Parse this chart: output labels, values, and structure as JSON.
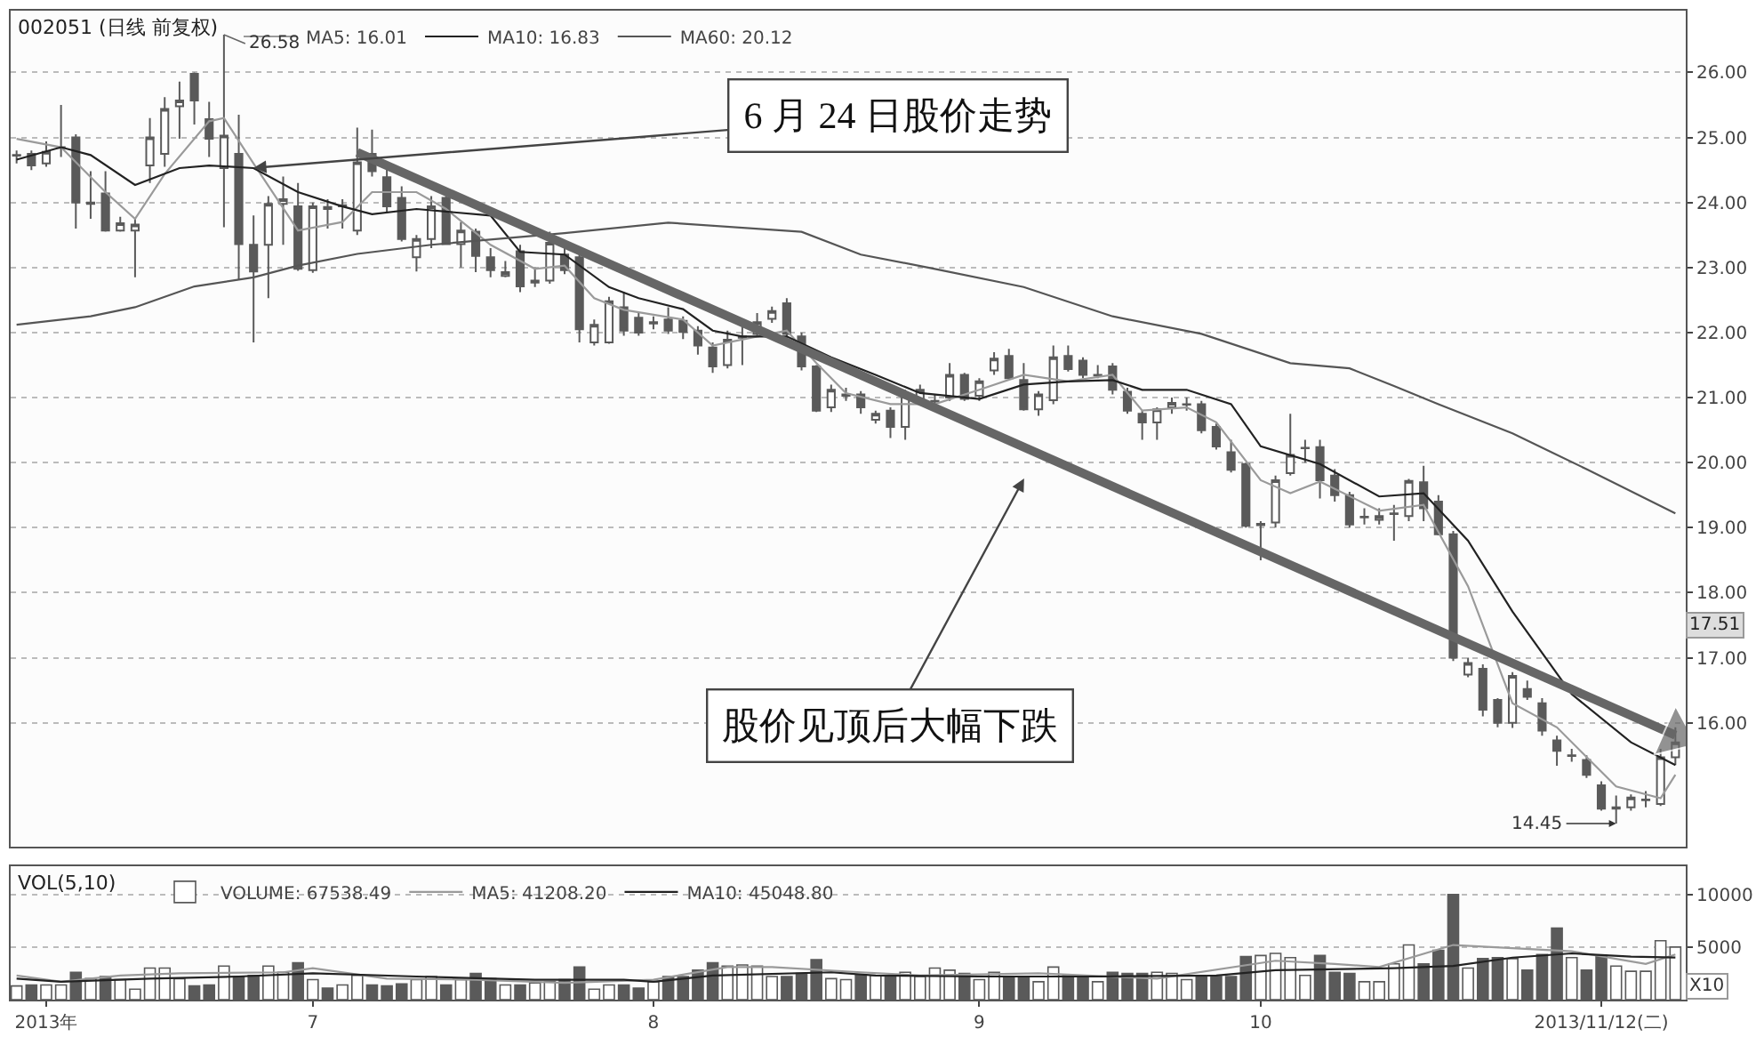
{
  "chart_data": [
    {
      "type": "candlestick",
      "title": "002051 (日线 前复权)",
      "legend": "top left",
      "grid": "y",
      "tick_labels": "y",
      "ylim": [
        14.1,
        26.95
      ],
      "yticks": [
        {
          "value": 16,
          "label": "16.00"
        },
        {
          "value": 17,
          "label": "17.00"
        },
        {
          "value": 18,
          "label": "18.00"
        },
        {
          "value": 19,
          "label": "19.00"
        },
        {
          "value": 20,
          "label": "20.00"
        },
        {
          "value": 21,
          "label": "21.00"
        },
        {
          "value": 22,
          "label": "22.00"
        },
        {
          "value": 23,
          "label": "23.00"
        },
        {
          "value": 24,
          "label": "24.00"
        },
        {
          "value": 25,
          "label": "25.00"
        },
        {
          "value": 26,
          "label": "26.00"
        }
      ],
      "categories": [
        null,
        null,
        null,
        null,
        null,
        null,
        null,
        null,
        null,
        null,
        null,
        null,
        null,
        null,
        null,
        null,
        null,
        null,
        null,
        null,
        null,
        null,
        null,
        null,
        null,
        null,
        null,
        null,
        null,
        null,
        null,
        null,
        null,
        null,
        null,
        null,
        null,
        null,
        null,
        null,
        null,
        null,
        null,
        null,
        null,
        null,
        null,
        null,
        null,
        null,
        null,
        null,
        null,
        null,
        null,
        null,
        null,
        null,
        null,
        null,
        null,
        null,
        null,
        null,
        null,
        null,
        null,
        null,
        null,
        null,
        null,
        null,
        null,
        null,
        null,
        null,
        null,
        null,
        null,
        null,
        null,
        null,
        null,
        null,
        null,
        null,
        null,
        null,
        null,
        null,
        null,
        null,
        null,
        null,
        null,
        null,
        null,
        null,
        null,
        null,
        null,
        null,
        null,
        null,
        null,
        null,
        null,
        null,
        null,
        null,
        null,
        null,
        null
      ],
      "series": [
        {
          "type": "line",
          "name": "MA5: 16.01",
          "color": "#9a9a9a",
          "values": [
            24.98,
            null,
            null,
            24.85,
            null,
            null,
            24.16,
            null,
            23.75,
            null,
            24.44,
            null,
            null,
            25.25,
            25.3,
            null,
            24.6,
            null,
            null,
            23.57,
            null,
            null,
            23.7,
            null,
            24.16,
            null,
            null,
            24.16,
            null,
            23.9,
            null,
            null,
            23.35,
            null,
            null,
            22.98,
            null,
            23.03,
            null,
            22.53,
            null,
            22.35,
            null,
            null,
            null,
            22.2,
            null,
            21.8,
            null,
            null,
            21.94,
            null,
            22.03,
            null,
            21.53,
            null,
            21.07,
            null,
            null,
            20.9,
            null,
            null,
            20.9,
            null,
            null,
            21.12,
            null,
            null,
            21.35,
            null,
            null,
            21.25,
            null,
            null,
            21.35,
            null,
            20.8,
            null,
            null,
            20.85,
            null,
            20.62,
            null,
            null,
            19.73,
            null,
            19.53,
            null,
            19.71,
            null,
            null,
            null,
            19.26,
            null,
            null,
            19.35,
            null,
            null,
            18.1,
            null,
            null,
            16.3,
            null,
            null,
            15.93,
            null,
            null,
            null,
            15.02,
            null,
            null,
            14.84,
            15.2
          ]
        },
        {
          "type": "line",
          "name": "MA10: 16.83",
          "color": "#222222",
          "values": [
            24.66,
            null,
            null,
            24.85,
            null,
            24.73,
            null,
            null,
            24.27,
            null,
            null,
            24.53,
            null,
            24.57,
            null,
            null,
            24.53,
            null,
            null,
            24.16,
            null,
            null,
            23.94,
            null,
            23.82,
            null,
            null,
            23.9,
            null,
            null,
            null,
            null,
            23.8,
            null,
            23.24,
            null,
            null,
            23.2,
            null,
            null,
            22.7,
            null,
            22.53,
            null,
            null,
            22.36,
            null,
            22.03,
            null,
            21.94,
            null,
            null,
            21.94,
            null,
            null,
            21.62,
            null,
            null,
            21.35,
            null,
            null,
            21.07,
            null,
            null,
            null,
            20.98,
            null,
            null,
            21.2,
            null,
            null,
            21.25,
            null,
            null,
            21.27,
            null,
            21.12,
            null,
            null,
            21.12,
            null,
            null,
            20.9,
            null,
            20.25,
            null,
            null,
            null,
            19.98,
            null,
            null,
            null,
            19.48,
            null,
            null,
            19.53,
            null,
            null,
            18.8,
            null,
            null,
            17.71,
            null,
            null,
            null,
            16.44,
            null,
            null,
            null,
            15.7,
            null,
            null,
            15.35
          ]
        },
        {
          "type": "line",
          "name": "MA60: 20.12",
          "color": "#555555",
          "values": [
            22.12,
            null,
            null,
            null,
            null,
            22.25,
            null,
            null,
            22.39,
            null,
            null,
            null,
            22.71,
            null,
            null,
            null,
            22.85,
            null,
            null,
            23.03,
            null,
            null,
            null,
            23.21,
            null,
            null,
            null,
            null,
            23.35,
            null,
            null,
            null,
            null,
            null,
            null,
            null,
            null,
            23.53,
            null,
            null,
            null,
            null,
            null,
            null,
            23.69,
            null,
            null,
            null,
            null,
            null,
            null,
            null,
            null,
            23.55,
            null,
            null,
            null,
            23.2,
            null,
            null,
            null,
            null,
            22.98,
            null,
            null,
            null,
            null,
            null,
            22.7,
            null,
            null,
            null,
            null,
            null,
            22.25,
            null,
            null,
            null,
            null,
            null,
            21.98,
            null,
            null,
            null,
            null,
            null,
            21.53,
            null,
            null,
            null,
            21.45,
            null,
            null,
            21.18,
            null,
            null,
            20.9,
            null,
            null,
            null,
            null,
            20.45,
            null,
            null,
            null,
            null,
            19.9,
            null,
            null,
            null,
            null,
            null,
            19.22
          ]
        },
        {
          "type": "line",
          "color": "#666666",
          "marker": "triangle",
          "values": [
            null,
            null,
            null,
            null,
            null,
            null,
            null,
            null,
            null,
            null,
            null,
            null,
            null,
            null,
            null,
            null,
            null,
            null,
            null,
            null,
            null,
            null,
            null,
            24.77,
            null,
            null,
            null,
            null,
            null,
            null,
            null,
            null,
            null,
            null,
            null,
            null,
            null,
            null,
            null,
            null,
            null,
            null,
            null,
            null,
            null,
            null,
            null,
            null,
            null,
            null,
            null,
            null,
            null,
            null,
            null,
            null,
            null,
            null,
            null,
            null,
            null,
            null,
            null,
            null,
            null,
            null,
            null,
            null,
            null,
            null,
            null,
            null,
            null,
            null,
            null,
            null,
            null,
            null,
            null,
            null,
            null,
            null,
            null,
            null,
            null,
            null,
            null,
            null,
            null,
            null,
            null,
            null,
            null,
            null,
            null,
            null,
            null,
            null,
            null,
            null,
            null,
            null,
            null,
            null,
            null,
            null,
            null,
            null,
            null,
            null,
            null,
            null,
            15.81
          ]
        },
        {
          "color": "#5a5a5a",
          "ohlc": [
            [
              24.72,
              24.8,
              24.6,
              24.73
            ],
            [
              24.75,
              24.8,
              24.5,
              24.57
            ],
            [
              24.6,
              24.94,
              24.55,
              24.78
            ],
            [
              24.84,
              25.5,
              24.7,
              24.85
            ],
            [
              25.0,
              25.05,
              23.6,
              24.0
            ],
            [
              23.98,
              24.48,
              23.75,
              24.0
            ],
            [
              24.14,
              24.48,
              23.55,
              23.57
            ],
            [
              23.57,
              23.78,
              23.55,
              23.68
            ],
            [
              23.57,
              23.75,
              22.85,
              23.66
            ],
            [
              24.57,
              25.3,
              24.3,
              25.0
            ],
            [
              24.75,
              25.62,
              24.55,
              25.44
            ],
            [
              25.48,
              25.86,
              24.98,
              25.57
            ],
            [
              25.98,
              26.0,
              25.2,
              25.57
            ],
            [
              25.28,
              25.55,
              24.7,
              24.98
            ],
            [
              24.53,
              26.58,
              23.62,
              25.03
            ],
            [
              24.75,
              25.35,
              22.82,
              23.36
            ],
            [
              23.35,
              23.8,
              21.85,
              22.94
            ],
            [
              23.35,
              24.1,
              22.53,
              23.98
            ],
            [
              23.98,
              24.4,
              23.35,
              24.05
            ],
            [
              23.94,
              24.3,
              22.95,
              22.98
            ],
            [
              22.96,
              24.0,
              22.92,
              23.94
            ],
            [
              23.93,
              24.05,
              23.6,
              23.9
            ],
            [
              23.94,
              24.05,
              23.6,
              23.96
            ],
            [
              23.57,
              25.15,
              23.5,
              24.62
            ],
            [
              24.75,
              25.12,
              24.4,
              24.48
            ],
            [
              24.39,
              24.53,
              23.85,
              23.94
            ],
            [
              24.07,
              24.25,
              23.4,
              23.44
            ],
            [
              23.16,
              23.5,
              22.94,
              23.44
            ],
            [
              23.44,
              24.1,
              23.3,
              23.94
            ],
            [
              24.07,
              24.1,
              23.35,
              23.36
            ],
            [
              23.36,
              23.7,
              23.0,
              23.57
            ],
            [
              23.55,
              23.6,
              22.93,
              23.18
            ],
            [
              23.16,
              23.3,
              22.85,
              22.96
            ],
            [
              22.87,
              23.1,
              22.85,
              22.93
            ],
            [
              23.25,
              23.35,
              22.62,
              22.71
            ],
            [
              22.77,
              23.0,
              22.7,
              22.8
            ],
            [
              22.8,
              23.55,
              22.75,
              23.38
            ],
            [
              23.2,
              23.35,
              22.9,
              22.96
            ],
            [
              23.16,
              23.2,
              21.85,
              22.05
            ],
            [
              21.85,
              22.2,
              21.8,
              22.12
            ],
            [
              21.85,
              22.55,
              21.83,
              22.48
            ],
            [
              22.39,
              22.62,
              21.95,
              22.03
            ],
            [
              22.23,
              22.3,
              21.95,
              22.0
            ],
            [
              22.14,
              22.25,
              22.05,
              22.16
            ],
            [
              22.2,
              22.39,
              21.98,
              22.03
            ],
            [
              22.18,
              22.25,
              21.9,
              22.01
            ],
            [
              22.03,
              22.1,
              21.66,
              21.8
            ],
            [
              21.77,
              21.85,
              21.38,
              21.48
            ],
            [
              21.5,
              22.03,
              21.45,
              21.89
            ],
            [
              21.92,
              22.2,
              21.5,
              21.94
            ],
            [
              21.98,
              22.3,
              21.95,
              22.16
            ],
            [
              22.21,
              22.4,
              22.15,
              22.33
            ],
            [
              22.45,
              22.53,
              21.9,
              21.98
            ],
            [
              21.94,
              22.0,
              21.42,
              21.48
            ],
            [
              21.48,
              21.5,
              20.78,
              20.8
            ],
            [
              20.85,
              21.2,
              20.78,
              21.12
            ],
            [
              21.03,
              21.15,
              20.95,
              21.05
            ],
            [
              21.05,
              21.1,
              20.75,
              20.85
            ],
            [
              20.66,
              20.8,
              20.6,
              20.75
            ],
            [
              20.8,
              20.85,
              20.38,
              20.55
            ],
            [
              20.55,
              21.12,
              20.35,
              21.07
            ],
            [
              20.98,
              21.2,
              20.95,
              21.12
            ],
            [
              20.94,
              21.05,
              20.85,
              20.95
            ],
            [
              21.0,
              21.53,
              20.95,
              21.35
            ],
            [
              21.35,
              21.38,
              20.95,
              20.98
            ],
            [
              21.03,
              21.3,
              20.95,
              21.25
            ],
            [
              21.42,
              21.7,
              21.35,
              21.6
            ],
            [
              21.64,
              21.75,
              21.28,
              21.3
            ],
            [
              21.27,
              21.53,
              20.8,
              20.82
            ],
            [
              20.82,
              21.1,
              20.72,
              21.05
            ],
            [
              20.96,
              21.8,
              20.9,
              21.62
            ],
            [
              21.64,
              21.8,
              21.4,
              21.44
            ],
            [
              21.57,
              21.62,
              21.3,
              21.35
            ],
            [
              21.34,
              21.5,
              21.3,
              21.35
            ],
            [
              21.48,
              21.53,
              21.05,
              21.12
            ],
            [
              21.09,
              21.15,
              20.75,
              20.8
            ],
            [
              20.75,
              20.8,
              20.35,
              20.62
            ],
            [
              20.62,
              20.85,
              20.35,
              20.82
            ],
            [
              20.85,
              21.0,
              20.75,
              20.92
            ],
            [
              20.89,
              21.0,
              20.8,
              20.9
            ],
            [
              20.9,
              20.95,
              20.45,
              20.5
            ],
            [
              20.55,
              20.6,
              20.2,
              20.25
            ],
            [
              20.16,
              20.35,
              19.85,
              19.89
            ],
            [
              19.98,
              20.0,
              19.0,
              19.03
            ],
            [
              19.04,
              19.1,
              18.5,
              19.06
            ],
            [
              19.08,
              19.8,
              19.0,
              19.73
            ],
            [
              19.84,
              20.75,
              19.8,
              20.12
            ],
            [
              20.22,
              20.35,
              20.0,
              20.23
            ],
            [
              20.24,
              20.35,
              19.45,
              19.73
            ],
            [
              19.8,
              19.9,
              19.4,
              19.5
            ],
            [
              19.5,
              19.55,
              19.0,
              19.05
            ],
            [
              19.16,
              19.3,
              19.05,
              19.17
            ],
            [
              19.12,
              19.3,
              19.05,
              19.18
            ],
            [
              19.21,
              19.35,
              18.8,
              19.22
            ],
            [
              19.18,
              19.75,
              19.1,
              19.72
            ],
            [
              19.7,
              19.95,
              19.1,
              19.3
            ],
            [
              19.4,
              19.5,
              18.88,
              18.9
            ],
            [
              18.9,
              18.95,
              16.95,
              17.0
            ],
            [
              16.74,
              17.0,
              16.7,
              16.92
            ],
            [
              16.83,
              16.9,
              16.1,
              16.2
            ],
            [
              16.35,
              16.38,
              15.93,
              16.0
            ],
            [
              16.0,
              16.78,
              15.92,
              16.72
            ],
            [
              16.52,
              16.65,
              16.35,
              16.4
            ],
            [
              16.3,
              16.38,
              15.8,
              15.88
            ],
            [
              15.73,
              15.8,
              15.34,
              15.57
            ],
            [
              15.49,
              15.6,
              15.4,
              15.5
            ],
            [
              15.43,
              15.5,
              15.15,
              15.2
            ],
            [
              15.04,
              15.1,
              14.65,
              14.68
            ],
            [
              14.68,
              14.88,
              14.45,
              14.7
            ],
            [
              14.7,
              14.9,
              14.65,
              14.85
            ],
            [
              14.81,
              14.95,
              14.7,
              14.82
            ],
            [
              14.75,
              15.6,
              14.72,
              15.47
            ],
            [
              15.47,
              15.93,
              15.35,
              15.7
            ]
          ]
        }
      ],
      "annotations": [
        "6 月 24 日股价走势",
        "股价见顶后大幅下跌",
        "26.58",
        "14.45",
        "17.51"
      ]
    },
    {
      "type": "bar",
      "title": "VOL(5,10)",
      "legend": "top left",
      "grid": "y",
      "ylim": [
        0,
        12700
      ],
      "yticks": [
        5000,
        10000
      ],
      "categories": [
        null,
        null,
        "2013年",
        null,
        null,
        null,
        null,
        null,
        null,
        null,
        null,
        null,
        null,
        null,
        null,
        null,
        null,
        null,
        null,
        null,
        "7",
        null,
        null,
        null,
        null,
        null,
        null,
        null,
        null,
        null,
        null,
        null,
        null,
        null,
        null,
        null,
        null,
        null,
        null,
        null,
        null,
        null,
        null,
        "8",
        null,
        null,
        null,
        null,
        null,
        null,
        null,
        null,
        null,
        null,
        null,
        null,
        null,
        null,
        null,
        null,
        null,
        null,
        null,
        null,
        null,
        "9",
        null,
        null,
        null,
        null,
        null,
        null,
        null,
        null,
        null,
        null,
        null,
        null,
        null,
        null,
        null,
        null,
        null,
        null,
        "10",
        null,
        null,
        null,
        null,
        null,
        null,
        null,
        null,
        null,
        null,
        null,
        null,
        null,
        null,
        null,
        null,
        null,
        null,
        null,
        null,
        null,
        null,
        "2013/11/12(二)",
        null,
        null,
        null,
        null,
        null
      ],
      "series": [
        {
          "name": "VOLUME: 67538.49",
          "color": "#5a5a5a",
          "colors": [
            "#ffffff",
            "#5a5a5a",
            "#ffffff",
            "#ffffff",
            "#5a5a5a",
            "#ffffff",
            "#5a5a5a",
            "#ffffff",
            "#ffffff",
            "#ffffff",
            "#ffffff",
            "#ffffff",
            "#5a5a5a",
            "#5a5a5a",
            "#ffffff",
            "#5a5a5a",
            "#5a5a5a",
            "#ffffff",
            "#ffffff",
            "#5a5a5a",
            "#ffffff",
            "#5a5a5a",
            "#ffffff",
            "#ffffff",
            "#5a5a5a",
            "#5a5a5a",
            "#5a5a5a",
            "#ffffff",
            "#ffffff",
            "#5a5a5a",
            "#ffffff",
            "#5a5a5a",
            "#5a5a5a",
            "#ffffff",
            "#5a5a5a",
            "#ffffff",
            "#ffffff",
            "#5a5a5a",
            "#5a5a5a",
            "#ffffff",
            "#ffffff",
            "#5a5a5a",
            "#5a5a5a",
            "#ffffff",
            "#5a5a5a",
            "#5a5a5a",
            "#5a5a5a",
            "#5a5a5a",
            "#ffffff",
            "#ffffff",
            "#ffffff",
            "#ffffff",
            "#5a5a5a",
            "#5a5a5a",
            "#5a5a5a",
            "#ffffff",
            "#ffffff",
            "#5a5a5a",
            "#ffffff",
            "#5a5a5a",
            "#ffffff",
            "#ffffff",
            "#ffffff",
            "#ffffff",
            "#5a5a5a",
            "#ffffff",
            "#ffffff",
            "#5a5a5a",
            "#5a5a5a",
            "#ffffff",
            "#ffffff",
            "#5a5a5a",
            "#5a5a5a",
            "#ffffff",
            "#5a5a5a",
            "#5a5a5a",
            "#5a5a5a",
            "#ffffff",
            "#ffffff",
            "#ffffff",
            "#5a5a5a",
            "#5a5a5a",
            "#5a5a5a",
            "#5a5a5a",
            "#ffffff",
            "#ffffff",
            "#ffffff",
            "#ffffff",
            "#5a5a5a",
            "#5a5a5a",
            "#5a5a5a",
            "#ffffff",
            "#ffffff",
            "#ffffff",
            "#ffffff",
            "#5a5a5a",
            "#5a5a5a",
            "#5a5a5a",
            "#ffffff",
            "#5a5a5a",
            "#5a5a5a",
            "#ffffff",
            "#5a5a5a",
            "#5a5a5a",
            "#5a5a5a",
            "#ffffff",
            "#5a5a5a",
            "#5a5a5a",
            "#ffffff",
            "#ffffff",
            "#ffffff",
            "#ffffff",
            "#ffffff"
          ],
          "values": [
            1300,
            1400,
            1400,
            1400,
            2600,
            2000,
            2200,
            1900,
            1000,
            3000,
            3000,
            2000,
            1300,
            1400,
            3200,
            2200,
            2300,
            3200,
            2600,
            3500,
            1900,
            1100,
            1400,
            2300,
            1400,
            1300,
            1500,
            1900,
            2200,
            1400,
            1900,
            2500,
            2000,
            1400,
            1400,
            1600,
            1700,
            1900,
            3100,
            1000,
            1400,
            1400,
            1100,
            1700,
            2200,
            2200,
            2800,
            3500,
            3200,
            3300,
            3200,
            2200,
            2200,
            2500,
            3800,
            2000,
            1900,
            2300,
            2300,
            2200,
            2600,
            2200,
            3000,
            2800,
            2500,
            1900,
            2600,
            2200,
            2200,
            1700,
            3100,
            2300,
            2200,
            1700,
            2600,
            2500,
            2500,
            2600,
            2500,
            1900,
            2200,
            2200,
            2200,
            4100,
            4200,
            4400,
            4000,
            2300,
            4200,
            2600,
            2500,
            1700,
            1700,
            3400,
            5200,
            3400,
            4700,
            10000,
            3000,
            3900,
            4000,
            3900,
            2800,
            4300,
            6800,
            4000,
            2800,
            4200,
            3200,
            2700,
            2700,
            5600,
            5000
          ]
        },
        {
          "type": "line",
          "name": "MA5: 41208.20",
          "color": "#9a9a9a",
          "values": [
            2300,
            null,
            null,
            1700,
            null,
            null,
            null,
            2300,
            null,
            null,
            null,
            2500,
            null,
            null,
            null,
            null,
            null,
            null,
            2600,
            null,
            3000,
            null,
            null,
            null,
            null,
            2000,
            null,
            null,
            null,
            null,
            null,
            1900,
            null,
            null,
            null,
            null,
            null,
            1600,
            null,
            null,
            null,
            null,
            null,
            1900,
            null,
            null,
            null,
            null,
            3100,
            null,
            null,
            3100,
            null,
            null,
            null,
            null,
            null,
            2600,
            null,
            null,
            null,
            2300,
            null,
            null,
            null,
            null,
            null,
            null,
            null,
            2500,
            null,
            null,
            null,
            null,
            null,
            null,
            null,
            2000,
            null,
            null,
            null,
            null,
            null,
            null,
            null,
            3700,
            null,
            null,
            null,
            3400,
            null,
            null,
            3100,
            null,
            null,
            null,
            null,
            5200,
            null,
            null,
            null,
            4900,
            null,
            null,
            null,
            4600,
            null,
            null,
            null,
            null,
            3400,
            null,
            4300
          ]
        },
        {
          "type": "line",
          "name": "MA10: 45048.80",
          "color": "#222222",
          "values": [
            2000,
            null,
            null,
            1700,
            null,
            null,
            null,
            null,
            null,
            2000,
            null,
            null,
            null,
            null,
            null,
            2200,
            null,
            null,
            null,
            null,
            2500,
            null,
            null,
            null,
            null,
            null,
            null,
            2200,
            null,
            null,
            null,
            null,
            null,
            null,
            null,
            1900,
            null,
            null,
            null,
            null,
            null,
            1900,
            null,
            1700,
            null,
            null,
            null,
            2300,
            null,
            null,
            null,
            null,
            null,
            null,
            null,
            2600,
            null,
            null,
            2300,
            null,
            null,
            null,
            null,
            null,
            null,
            2200,
            null,
            null,
            null,
            null,
            null,
            null,
            null,
            2200,
            null,
            null,
            null,
            null,
            null,
            null,
            null,
            2300,
            null,
            null,
            null,
            2800,
            null,
            null,
            null,
            null,
            null,
            null,
            null,
            3000,
            null,
            null,
            null,
            3200,
            null,
            null,
            null,
            4000,
            null,
            null,
            null,
            4400,
            null,
            null,
            null,
            4100,
            null,
            null,
            4000
          ]
        }
      ],
      "annotations": [
        "X10"
      ]
    }
  ]
}
